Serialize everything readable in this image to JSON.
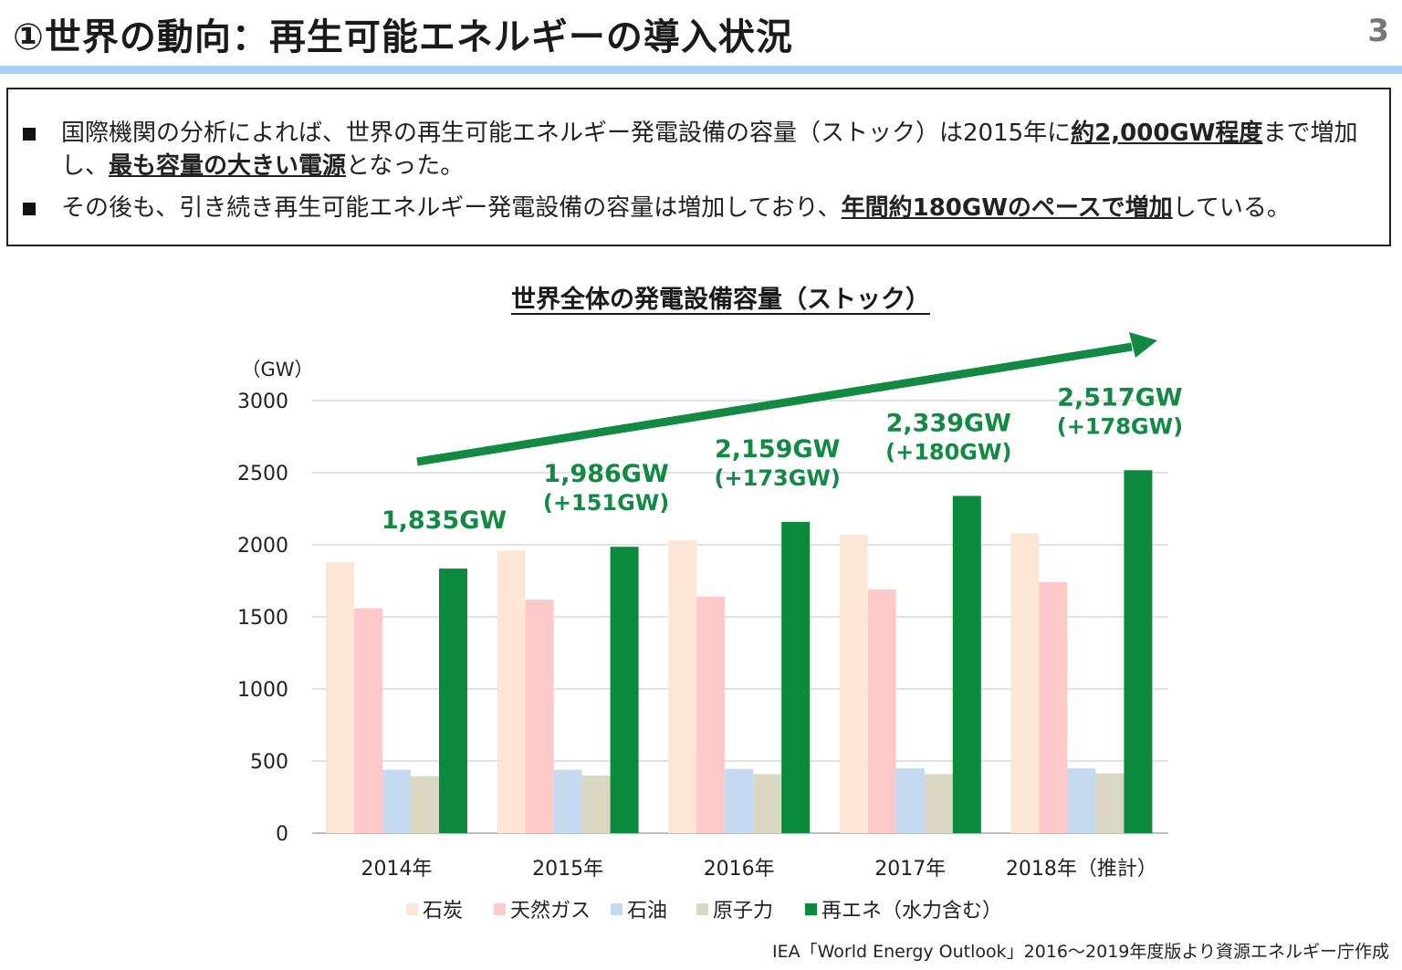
{
  "header": {
    "title": "①世界の動向：再生可能エネルギーの導入状況",
    "page_number": "3"
  },
  "summary": {
    "bullet1": {
      "part1": "国際機関の分析によれば、世界の再生可能エネルギー発電設備の容量（ストック）は2015年に",
      "hl1": "約2,000GW程度",
      "part2": "まで増加し、",
      "hl2": "最も容量の大きい電源",
      "part3": "となった。"
    },
    "bullet2": {
      "part1": "その後も、引き続き再生可能エネルギー発電設備の容量は増加しており、",
      "hl1": "年間約180GWのペースで増加",
      "part2": "している。"
    }
  },
  "chart_data": {
    "type": "bar",
    "title": "世界全体の発電設備容量（ストック）",
    "ylabel": "（GW）",
    "ylim": [
      0,
      3000
    ],
    "yticks": [
      0,
      500,
      1000,
      1500,
      2000,
      2500,
      3000
    ],
    "categories": [
      "2014年",
      "2015年",
      "2016年",
      "2017年",
      "2018年（推計）"
    ],
    "series": [
      {
        "name": "石炭",
        "color": "#fde6d6",
        "values": [
          1880,
          1960,
          2030,
          2070,
          2080
        ]
      },
      {
        "name": "天然ガス",
        "color": "#ffc9c9",
        "values": [
          1560,
          1620,
          1640,
          1690,
          1740
        ]
      },
      {
        "name": "石油",
        "color": "#c5d9f1",
        "values": [
          440,
          440,
          445,
          450,
          450
        ]
      },
      {
        "name": "原子力",
        "color": "#dad8c3",
        "values": [
          395,
          400,
          410,
          410,
          415
        ]
      },
      {
        "name": "再エネ（水力含む）",
        "color": "#0b8a3e",
        "values": [
          1835,
          1986,
          2159,
          2339,
          2517
        ]
      }
    ],
    "annotations": [
      {
        "total": "1,835GW",
        "delta": ""
      },
      {
        "total": "1,986GW",
        "delta": "(+151GW)"
      },
      {
        "total": "2,159GW",
        "delta": "(+173GW)"
      },
      {
        "total": "2,339GW",
        "delta": "(+180GW)"
      },
      {
        "total": "2,517GW",
        "delta": "(+178GW)"
      }
    ],
    "annotation_color": "#138a44",
    "trend_arrow_color": "#138a44",
    "grid": true,
    "legend_position": "bottom"
  },
  "source": "IEA「World Energy Outlook」2016～2019年度版より資源エネルギー庁作成"
}
